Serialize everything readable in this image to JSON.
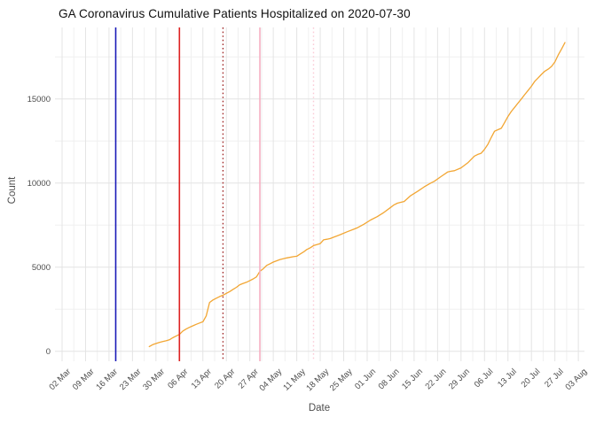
{
  "title": "GA Coronavirus Cumulative Patients Hospitalized on 2020-07-30",
  "chart_data": {
    "type": "line",
    "title": "GA Coronavirus Cumulative Patients Hospitalized on 2020-07-30",
    "xlabel": "Date",
    "ylabel": "Count",
    "legend_position": "none",
    "grid": "major+minor",
    "x_start_date": "2020-03-02",
    "x_tick_interval_days": 7,
    "x_tick_labels": [
      "02 Mar",
      "09 Mar",
      "16 Mar",
      "23 Mar",
      "30 Mar",
      "06 Apr",
      "13 Apr",
      "20 Apr",
      "27 Apr",
      "04 May",
      "11 May",
      "18 May",
      "25 May",
      "01 Jun",
      "08 Jun",
      "15 Jun",
      "22 Jun",
      "29 Jun",
      "06 Jul",
      "13 Jul",
      "20 Jul",
      "27 Jul",
      "03 Aug"
    ],
    "y_ticks": [
      0,
      5000,
      10000,
      15000
    ],
    "y_minor_ticks": [
      2500,
      7500,
      12500,
      17500
    ],
    "ylim": [
      0,
      19200
    ],
    "line_color": "#F2A633",
    "grid_major_color": "#E4E4E4",
    "grid_minor_color": "#F0F0F0",
    "vlines": [
      {
        "date": "2020-03-18",
        "color": "#1A1AB8",
        "style": "solid"
      },
      {
        "date": "2020-04-06",
        "color": "#DD2222",
        "style": "solid"
      },
      {
        "date": "2020-04-19",
        "color": "#A12A2A",
        "style": "dotted"
      },
      {
        "date": "2020-04-30",
        "color": "#F7AFC2",
        "style": "solid"
      },
      {
        "date": "2020-05-16",
        "color": "#FBCBD6",
        "style": "dotted"
      }
    ],
    "series": [
      {
        "name": "Cumulative Patients Hospitalized",
        "points": [
          [
            "2020-03-28",
            280
          ],
          [
            "2020-03-29",
            390
          ],
          [
            "2020-03-30",
            460
          ],
          [
            "2020-03-31",
            520
          ],
          [
            "2020-04-01",
            575
          ],
          [
            "2020-04-02",
            620
          ],
          [
            "2020-04-03",
            680
          ],
          [
            "2020-04-04",
            800
          ],
          [
            "2020-04-05",
            900
          ],
          [
            "2020-04-06",
            1000
          ],
          [
            "2020-04-07",
            1200
          ],
          [
            "2020-04-08",
            1320
          ],
          [
            "2020-04-09",
            1420
          ],
          [
            "2020-04-10",
            1510
          ],
          [
            "2020-04-11",
            1600
          ],
          [
            "2020-04-12",
            1680
          ],
          [
            "2020-04-13",
            1750
          ],
          [
            "2020-04-14",
            2100
          ],
          [
            "2020-04-15",
            2900
          ],
          [
            "2020-04-16",
            3050
          ],
          [
            "2020-04-17",
            3150
          ],
          [
            "2020-04-18",
            3250
          ],
          [
            "2020-04-19",
            3330
          ],
          [
            "2020-04-20",
            3440
          ],
          [
            "2020-04-21",
            3550
          ],
          [
            "2020-04-22",
            3680
          ],
          [
            "2020-04-23",
            3800
          ],
          [
            "2020-04-24",
            3950
          ],
          [
            "2020-04-25",
            4030
          ],
          [
            "2020-04-26",
            4100
          ],
          [
            "2020-04-27",
            4200
          ],
          [
            "2020-04-28",
            4300
          ],
          [
            "2020-04-29",
            4420
          ],
          [
            "2020-04-30",
            4750
          ],
          [
            "2020-05-01",
            4900
          ],
          [
            "2020-05-02",
            5100
          ],
          [
            "2020-05-03",
            5200
          ],
          [
            "2020-05-04",
            5300
          ],
          [
            "2020-05-06",
            5450
          ],
          [
            "2020-05-08",
            5550
          ],
          [
            "2020-05-10",
            5620
          ],
          [
            "2020-05-11",
            5650
          ],
          [
            "2020-05-12",
            5780
          ],
          [
            "2020-05-13",
            5900
          ],
          [
            "2020-05-14",
            6050
          ],
          [
            "2020-05-15",
            6150
          ],
          [
            "2020-05-16",
            6280
          ],
          [
            "2020-05-17",
            6340
          ],
          [
            "2020-05-18",
            6400
          ],
          [
            "2020-05-19",
            6620
          ],
          [
            "2020-05-20",
            6660
          ],
          [
            "2020-05-21",
            6700
          ],
          [
            "2020-05-22",
            6780
          ],
          [
            "2020-05-24",
            6930
          ],
          [
            "2020-05-26",
            7100
          ],
          [
            "2020-05-28",
            7250
          ],
          [
            "2020-05-29",
            7330
          ],
          [
            "2020-05-31",
            7550
          ],
          [
            "2020-06-02",
            7800
          ],
          [
            "2020-06-04",
            8000
          ],
          [
            "2020-06-06",
            8250
          ],
          [
            "2020-06-08",
            8550
          ],
          [
            "2020-06-09",
            8700
          ],
          [
            "2020-06-10",
            8800
          ],
          [
            "2020-06-11",
            8850
          ],
          [
            "2020-06-12",
            8900
          ],
          [
            "2020-06-14",
            9250
          ],
          [
            "2020-06-16",
            9500
          ],
          [
            "2020-06-18",
            9770
          ],
          [
            "2020-06-20",
            10000
          ],
          [
            "2020-06-21",
            10100
          ],
          [
            "2020-06-23",
            10380
          ],
          [
            "2020-06-25",
            10650
          ],
          [
            "2020-06-26",
            10700
          ],
          [
            "2020-06-27",
            10730
          ],
          [
            "2020-06-29",
            10900
          ],
          [
            "2020-07-01",
            11200
          ],
          [
            "2020-07-02",
            11400
          ],
          [
            "2020-07-03",
            11600
          ],
          [
            "2020-07-04",
            11700
          ],
          [
            "2020-07-05",
            11770
          ],
          [
            "2020-07-06",
            12000
          ],
          [
            "2020-07-07",
            12300
          ],
          [
            "2020-07-08",
            12700
          ],
          [
            "2020-07-09",
            13080
          ],
          [
            "2020-07-10",
            13170
          ],
          [
            "2020-07-11",
            13250
          ],
          [
            "2020-07-12",
            13600
          ],
          [
            "2020-07-13",
            13950
          ],
          [
            "2020-07-14",
            14250
          ],
          [
            "2020-07-15",
            14500
          ],
          [
            "2020-07-16",
            14750
          ],
          [
            "2020-07-17",
            15000
          ],
          [
            "2020-07-18",
            15250
          ],
          [
            "2020-07-19",
            15500
          ],
          [
            "2020-07-20",
            15750
          ],
          [
            "2020-07-21",
            16050
          ],
          [
            "2020-07-22",
            16250
          ],
          [
            "2020-07-23",
            16460
          ],
          [
            "2020-07-24",
            16650
          ],
          [
            "2020-07-25",
            16770
          ],
          [
            "2020-07-26",
            16930
          ],
          [
            "2020-07-27",
            17200
          ],
          [
            "2020-07-28",
            17610
          ],
          [
            "2020-07-29",
            17970
          ],
          [
            "2020-07-30",
            18350
          ]
        ]
      }
    ]
  },
  "axis_text_color": "#4d4d4d",
  "title_color": "#111111"
}
